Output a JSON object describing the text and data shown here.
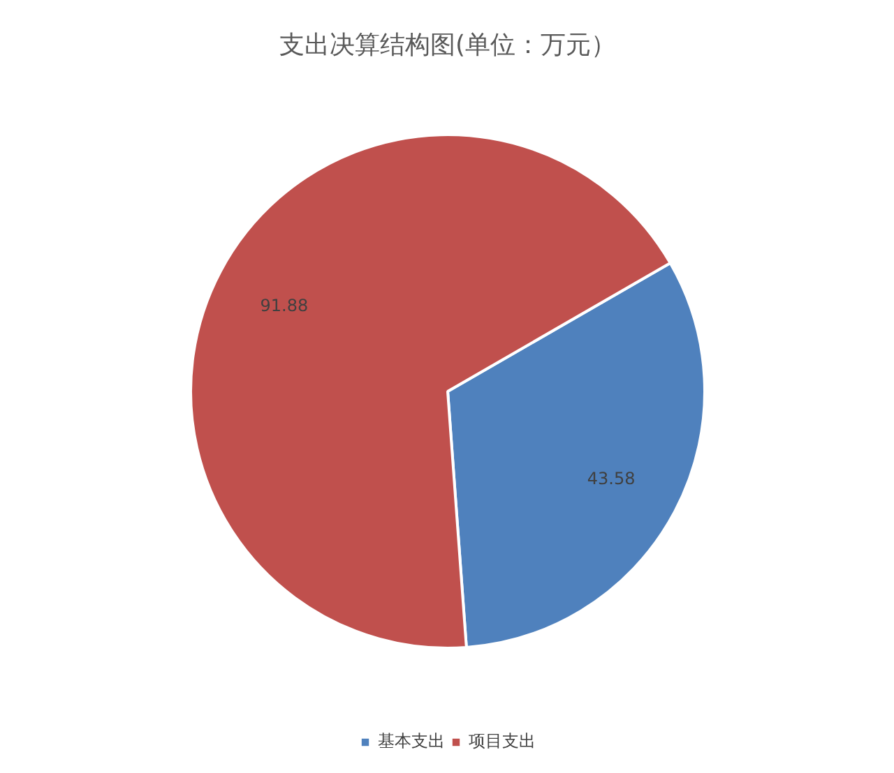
{
  "chart_data": {
    "type": "pie",
    "title": "支出决算结构图(单位：万元）",
    "categories": [
      "基本支出",
      "项目支出"
    ],
    "values": [
      43.58,
      91.88
    ],
    "colors": [
      "#4f81bd",
      "#c0504d"
    ],
    "data_labels": true,
    "legend": "bottom"
  }
}
